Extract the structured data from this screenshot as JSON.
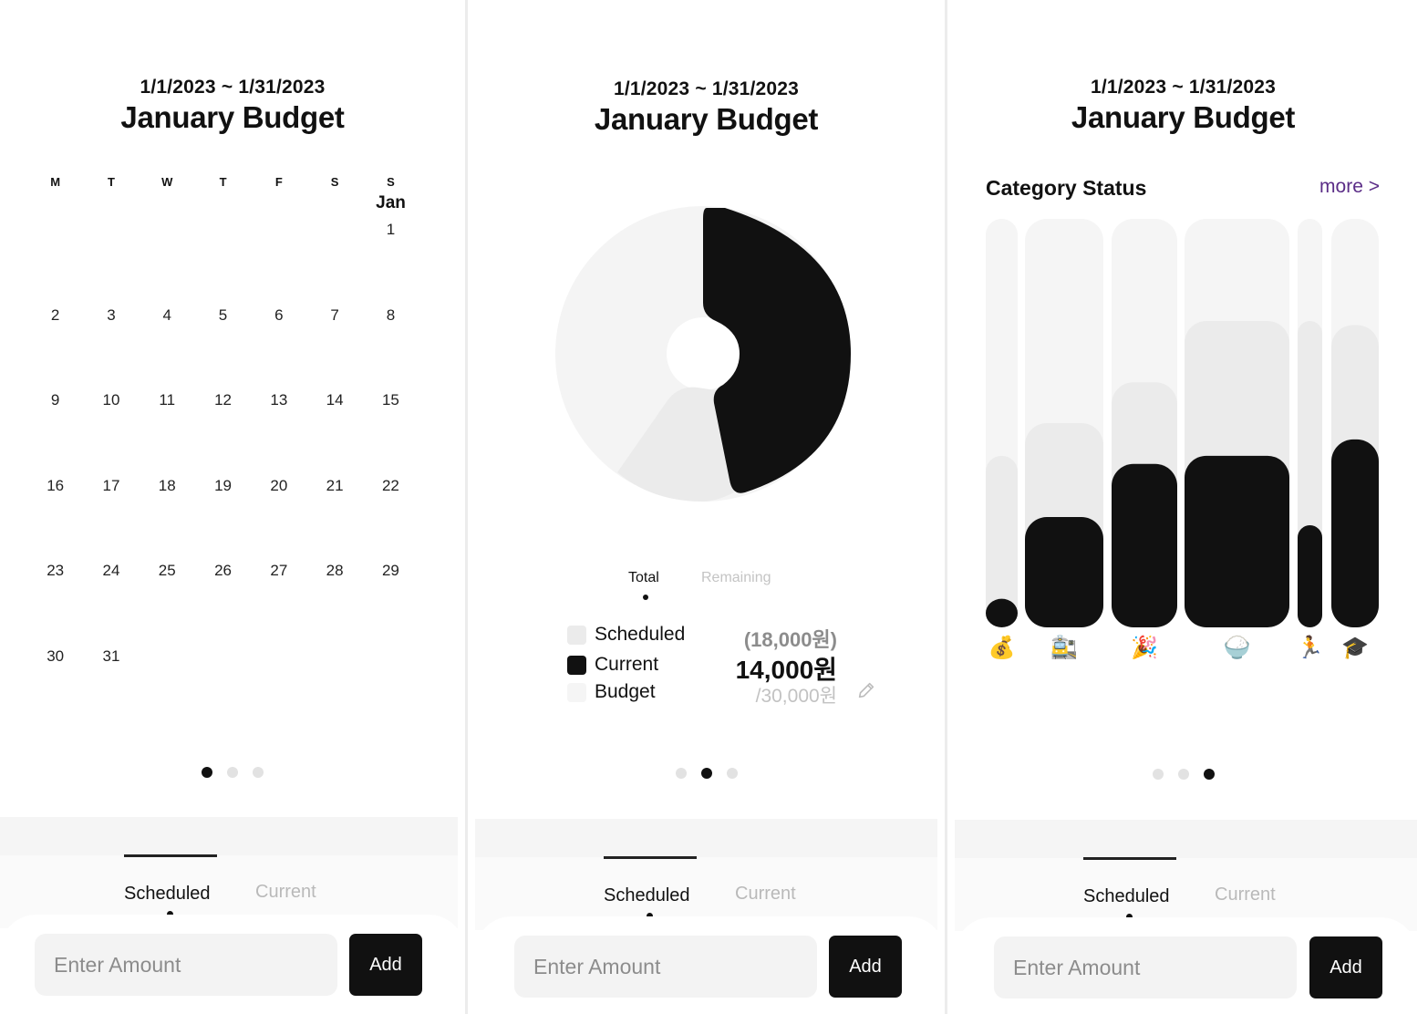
{
  "header": {
    "date_range": "1/1/2023 ~ 1/31/2023",
    "title": "January Budget"
  },
  "calendar": {
    "weekdays": [
      "M",
      "T",
      "W",
      "T",
      "F",
      "S",
      "S"
    ],
    "month_label": "Jan",
    "weeks": [
      [
        "",
        "",
        "",
        "",
        "",
        "",
        "1"
      ],
      [
        "2",
        "3",
        "4",
        "5",
        "6",
        "7",
        "8"
      ],
      [
        "9",
        "10",
        "11",
        "12",
        "13",
        "14",
        "15"
      ],
      [
        "16",
        "17",
        "18",
        "19",
        "20",
        "21",
        "22"
      ],
      [
        "23",
        "24",
        "25",
        "26",
        "27",
        "28",
        "29"
      ],
      [
        "30",
        "31",
        "",
        "",
        "",
        "",
        ""
      ]
    ]
  },
  "pager": {
    "count": 3
  },
  "bottom": {
    "tab_scheduled": "Scheduled",
    "tab_current": "Current",
    "amount_placeholder": "Enter Amount",
    "add_label": "Add"
  },
  "donut": {
    "tab_total": "Total",
    "tab_remaining": "Remaining",
    "legend": {
      "scheduled_label": "Scheduled",
      "scheduled_value": "(18,000원)",
      "current_label": "Current",
      "current_value": "14,000원",
      "budget_label": "Budget",
      "budget_value": "/30,000원"
    },
    "colors": {
      "current": "#111111",
      "scheduled": "#ebebeb",
      "budget": "#f5f5f5"
    }
  },
  "category": {
    "title": "Category Status",
    "more_label": "more >",
    "items": [
      {
        "icon": "💰",
        "icon_name": "money-bag-icon",
        "budget": 1.0,
        "scheduled": 0.42,
        "current": 0.07
      },
      {
        "icon": "🚉",
        "icon_name": "train-station-icon",
        "budget": 1.0,
        "scheduled": 0.5,
        "current": 0.27
      },
      {
        "icon": "🎉",
        "icon_name": "party-popper-icon",
        "budget": 1.0,
        "scheduled": 0.6,
        "current": 0.4
      },
      {
        "icon": "🍚",
        "icon_name": "rice-bowl-icon",
        "budget": 1.0,
        "scheduled": 0.75,
        "current": 0.42
      },
      {
        "icon": "🏃",
        "icon_name": "runner-icon",
        "budget": 1.0,
        "scheduled": 0.75,
        "current": 0.25
      },
      {
        "icon": "🎓",
        "icon_name": "graduation-cap-icon",
        "budget": 1.0,
        "scheduled": 0.74,
        "current": 0.46
      }
    ]
  }
}
